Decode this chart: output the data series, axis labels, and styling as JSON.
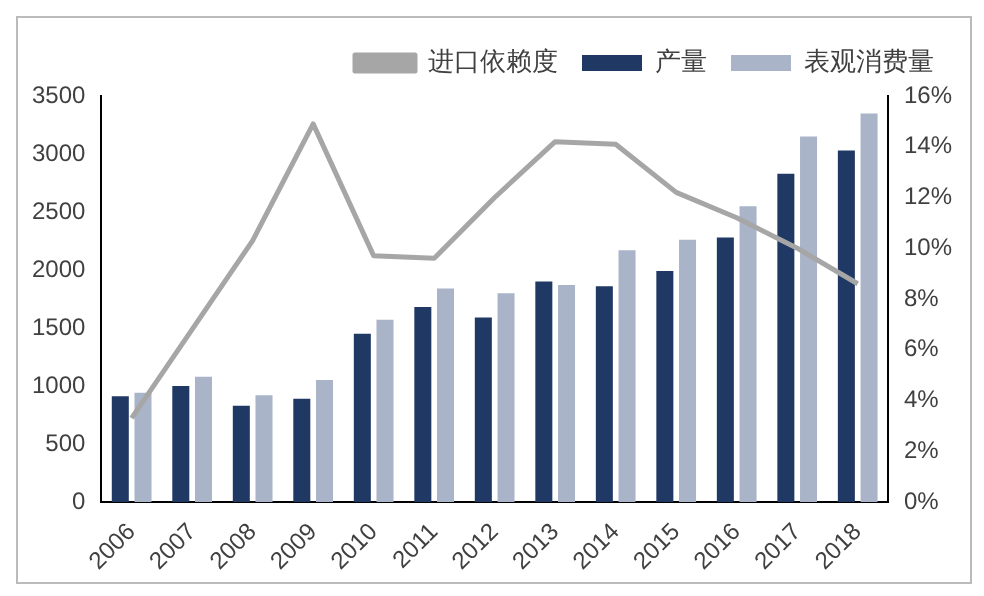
{
  "chart_data": {
    "type": "bar",
    "categories": [
      "2006",
      "2007",
      "2008",
      "2009",
      "2010",
      "2011",
      "2012",
      "2013",
      "2014",
      "2015",
      "2016",
      "2017",
      "2018"
    ],
    "series": [
      {
        "name": "产量",
        "color": "#1f3864",
        "values": [
          910,
          1000,
          830,
          890,
          1450,
          1680,
          1590,
          1900,
          1860,
          1990,
          2280,
          2830,
          3030
        ]
      },
      {
        "name": "表观消费量",
        "color": "#a9b4c8",
        "values": [
          940,
          1080,
          920,
          1050,
          1570,
          1840,
          1800,
          1870,
          2170,
          2260,
          2550,
          3150,
          3350
        ]
      },
      {
        "name": "进口依赖度",
        "type": "line",
        "axis": "y2",
        "color": "#a6a6a6",
        "values": [
          3.3,
          6.8,
          10.3,
          14.9,
          9.7,
          9.6,
          12.0,
          14.2,
          14.1,
          12.2,
          11.2,
          10.0,
          8.6
        ]
      }
    ],
    "ylim": [
      0,
      3500
    ],
    "yticks": [
      0,
      500,
      1000,
      1500,
      2000,
      2500,
      3000,
      3500
    ],
    "y2lim": [
      0,
      16
    ],
    "y2ticks": [
      {
        "value": 0,
        "label": "0%"
      },
      {
        "value": 2,
        "label": "2%"
      },
      {
        "value": 4,
        "label": "4%"
      },
      {
        "value": 6,
        "label": "6%"
      },
      {
        "value": 8,
        "label": "8%"
      },
      {
        "value": 10,
        "label": "10%"
      },
      {
        "value": 12,
        "label": "12%"
      },
      {
        "value": 14,
        "label": "14%"
      },
      {
        "value": 16,
        "label": "16%"
      }
    ],
    "grid": false,
    "legend": "top",
    "marker": "none"
  }
}
